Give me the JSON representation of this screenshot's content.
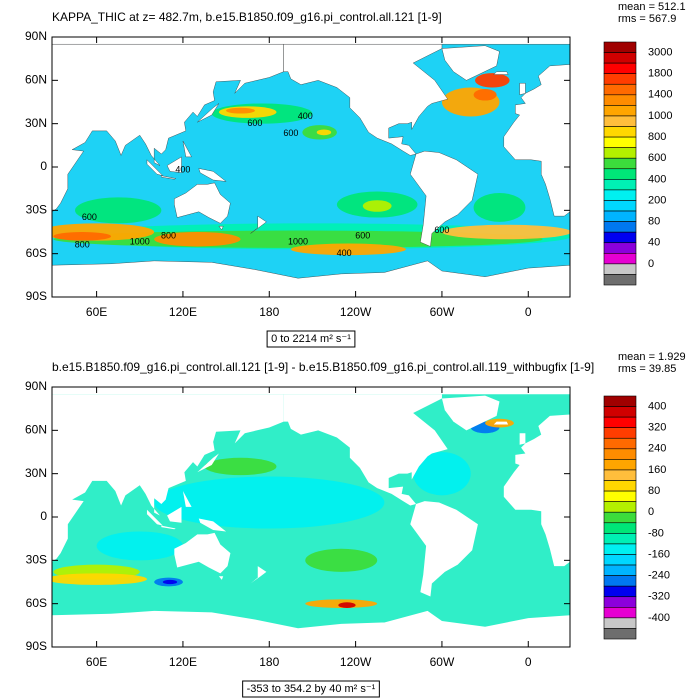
{
  "panels": [
    {
      "title": "KAPPA_THIC at z= 482.7m, b.e15.B1850.f09_g16.pi_control.all.121 [1-9]",
      "stats": [
        "mean = 512.1",
        "rms = 567.9"
      ],
      "range_label": "0 to 2214 m² s⁻¹",
      "lonlim": [
        29,
        389
      ],
      "latlim": [
        -90,
        90
      ],
      "lat_ticks": [
        {
          "value": 90,
          "label": "90N"
        },
        {
          "value": 60,
          "label": "60N"
        },
        {
          "value": 30,
          "label": "30N"
        },
        {
          "value": 0,
          "label": "0"
        },
        {
          "value": -30,
          "label": "30S"
        },
        {
          "value": -60,
          "label": "60S"
        },
        {
          "value": -90,
          "label": "90S"
        }
      ],
      "lon_ticks": [
        {
          "value": 60,
          "label": "60E"
        },
        {
          "value": 120,
          "label": "120E"
        },
        {
          "value": 180,
          "label": "180"
        },
        {
          "value": 240,
          "label": "120W"
        },
        {
          "value": 300,
          "label": "60W"
        },
        {
          "value": 360,
          "label": "0"
        }
      ],
      "colorbar": {
        "labels": [
          3000,
          1800,
          1400,
          1000,
          800,
          600,
          400,
          200,
          80,
          40,
          0
        ],
        "colors": [
          "#a00000",
          "#d00000",
          "#ff0000",
          "#ff3d00",
          "#ff6a00",
          "#ff8c00",
          "#ffa500",
          "#ffbe3c",
          "#ffd700",
          "#ffff00",
          "#b4f000",
          "#3cdc3c",
          "#00e678",
          "#00f0b4",
          "#00f0f0",
          "#00d7ff",
          "#00b4ff",
          "#0078f0",
          "#0000f0",
          "#8c00dc",
          "#e600d2",
          "#c8c8c8",
          "#6e6e6e"
        ]
      },
      "contour_labels": [
        "400",
        "600",
        "600",
        "400",
        "600",
        "800",
        "1000",
        "800",
        "1000",
        "600",
        "600",
        "400"
      ]
    },
    {
      "title": "b.e15.B1850.f09_g16.pi_control.all.121 [1-9] - b.e15.B1850.f09_g16.pi_control.all.119_withbugfix [1-9]",
      "stats": [
        "mean = 1.929",
        "rms = 39.85"
      ],
      "range_label": "-353 to 354.2 by 40 m² s⁻¹",
      "lonlim": [
        29,
        389
      ],
      "latlim": [
        -90,
        90
      ],
      "lat_ticks": [
        {
          "value": 90,
          "label": "90N"
        },
        {
          "value": 60,
          "label": "60N"
        },
        {
          "value": 30,
          "label": "30N"
        },
        {
          "value": 0,
          "label": "0"
        },
        {
          "value": -30,
          "label": "30S"
        },
        {
          "value": -60,
          "label": "60S"
        },
        {
          "value": -90,
          "label": "90S"
        }
      ],
      "lon_ticks": [
        {
          "value": 60,
          "label": "60E"
        },
        {
          "value": 120,
          "label": "120E"
        },
        {
          "value": 180,
          "label": "180"
        },
        {
          "value": 240,
          "label": "120W"
        },
        {
          "value": 300,
          "label": "60W"
        },
        {
          "value": 360,
          "label": "0"
        }
      ],
      "colorbar": {
        "labels": [
          400,
          320,
          240,
          160,
          80,
          0,
          -80,
          -160,
          -240,
          -320,
          -400
        ],
        "colors": [
          "#a00000",
          "#d00000",
          "#ff0000",
          "#ff3d00",
          "#ff6a00",
          "#ff8c00",
          "#ffa500",
          "#ffbe3c",
          "#ffd700",
          "#ffff00",
          "#b4f000",
          "#3cdc3c",
          "#00e678",
          "#00f0b4",
          "#00f0f0",
          "#00d7ff",
          "#00b4ff",
          "#0078f0",
          "#0000f0",
          "#8c00dc",
          "#e600d2",
          "#c8c8c8",
          "#6e6e6e"
        ]
      }
    }
  ]
}
